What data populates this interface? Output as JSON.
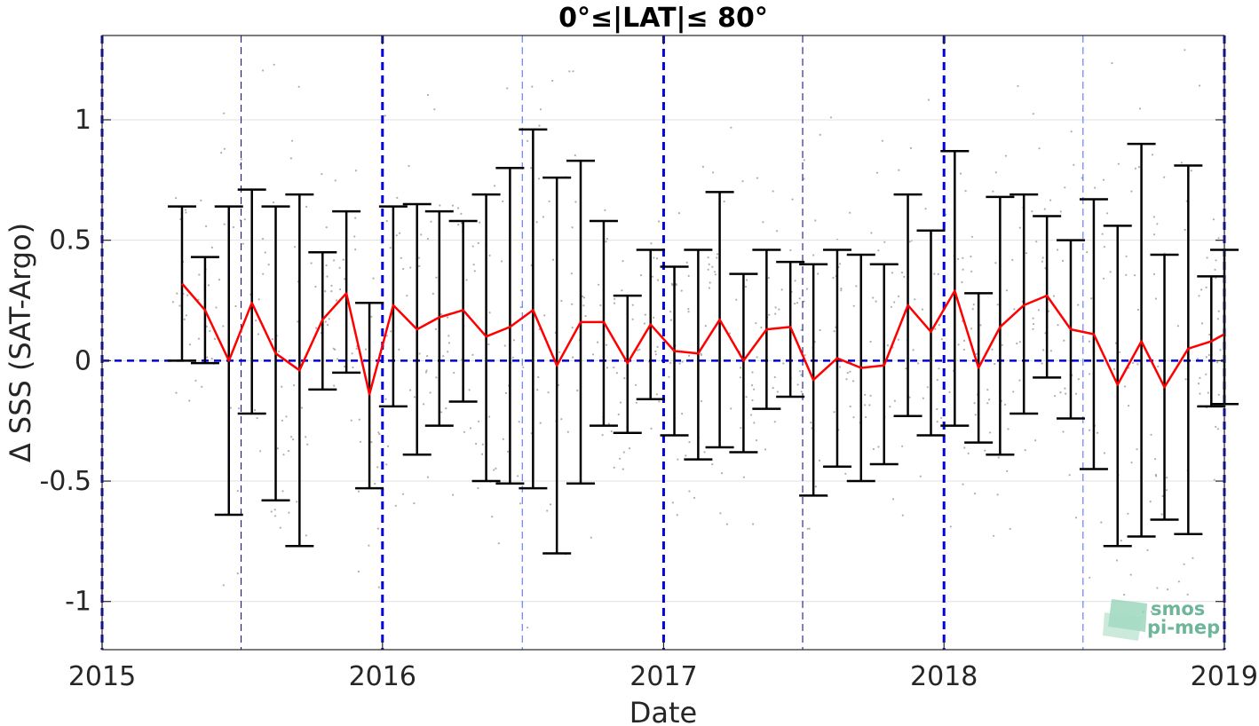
{
  "chart_data": {
    "type": "line",
    "title": "0°≤|LAT|≤ 80°",
    "xlabel": "Date",
    "ylabel": "Δ SSS (SAT-Argo)",
    "xlim": [
      "2015-01-01",
      "2019-01-01"
    ],
    "ylim": [
      -1.2,
      1.35
    ],
    "x_ticks": [
      "2015",
      "2016",
      "2017",
      "2018",
      "2019"
    ],
    "y_ticks": [
      -1,
      -0.5,
      0,
      0.5,
      1
    ],
    "y_tick_labels": [
      "-1",
      "-0.5",
      "0",
      "0.5",
      "1"
    ],
    "grid": true,
    "legend": "none",
    "colors": {
      "mean_line": "#ff0000",
      "error_bars": "#000000",
      "reference_lines": "#0000dd",
      "scatter": "#8c8c8c"
    },
    "reference_hline": 0,
    "year_vlines": [
      "2015-01-01",
      "2016-01-01",
      "2017-01-01",
      "2018-01-01",
      "2019-01-01"
    ],
    "half_year_vlines": [
      "2015-07-01",
      "2016-07-01",
      "2017-07-01",
      "2018-07-01"
    ],
    "series": [
      {
        "x": [
          "2015-04-15",
          "2015-05-15",
          "2015-06-15",
          "2015-07-15",
          "2015-08-15",
          "2015-09-15",
          "2015-10-15",
          "2015-11-15",
          "2015-12-15",
          "2016-01-15",
          "2016-02-15",
          "2016-03-15",
          "2016-04-15",
          "2016-05-15",
          "2016-06-15",
          "2016-07-15",
          "2016-08-15",
          "2016-09-15",
          "2016-10-15",
          "2016-11-15",
          "2016-12-15",
          "2017-01-15",
          "2017-02-15",
          "2017-03-15",
          "2017-04-15",
          "2017-05-15",
          "2017-06-15",
          "2017-07-15",
          "2017-08-15",
          "2017-09-15",
          "2017-10-15",
          "2017-11-15",
          "2017-12-15",
          "2018-01-15",
          "2018-02-15",
          "2018-03-15",
          "2018-04-15",
          "2018-05-15",
          "2018-06-15",
          "2018-07-15",
          "2018-08-15",
          "2018-09-15",
          "2018-10-15",
          "2018-11-15",
          "2018-12-15",
          "2019-01-01"
        ],
        "mean": [
          0.32,
          0.21,
          0.0,
          0.24,
          0.03,
          -0.04,
          0.17,
          0.28,
          -0.14,
          0.23,
          0.13,
          0.18,
          0.21,
          0.1,
          0.14,
          0.21,
          -0.02,
          0.16,
          0.16,
          -0.01,
          0.15,
          0.04,
          0.03,
          0.17,
          0.0,
          0.13,
          0.14,
          -0.08,
          0.01,
          -0.03,
          -0.02,
          0.23,
          0.12,
          0.29,
          -0.03,
          0.14,
          0.23,
          0.27,
          0.13,
          0.11,
          -0.1,
          0.08,
          -0.11,
          0.05,
          0.08,
          0.11
        ],
        "upper": [
          0.64,
          0.43,
          0.64,
          0.71,
          0.64,
          0.69,
          0.45,
          0.62,
          0.24,
          0.64,
          0.65,
          0.62,
          0.58,
          0.69,
          0.8,
          0.96,
          0.76,
          0.83,
          0.58,
          0.27,
          0.46,
          0.39,
          0.46,
          0.7,
          0.36,
          0.46,
          0.41,
          0.4,
          0.46,
          0.44,
          0.4,
          0.69,
          0.54,
          0.87,
          0.28,
          0.68,
          0.69,
          0.6,
          0.5,
          0.67,
          0.56,
          0.9,
          0.44,
          0.81,
          0.35,
          0.46
        ],
        "lower": [
          0.0,
          -0.01,
          -0.64,
          -0.22,
          -0.58,
          -0.77,
          -0.12,
          -0.05,
          -0.53,
          -0.19,
          -0.39,
          -0.27,
          -0.17,
          -0.5,
          -0.51,
          -0.53,
          -0.8,
          -0.51,
          -0.27,
          -0.3,
          -0.16,
          -0.31,
          -0.41,
          -0.36,
          -0.38,
          -0.2,
          -0.15,
          -0.56,
          -0.44,
          -0.5,
          -0.43,
          -0.23,
          -0.31,
          -0.27,
          -0.34,
          -0.39,
          -0.22,
          -0.07,
          -0.24,
          -0.45,
          -0.77,
          -0.73,
          -0.66,
          -0.72,
          -0.19,
          -0.18
        ]
      }
    ]
  },
  "logo": {
    "line1": "smos",
    "line2": "pi-mep"
  }
}
